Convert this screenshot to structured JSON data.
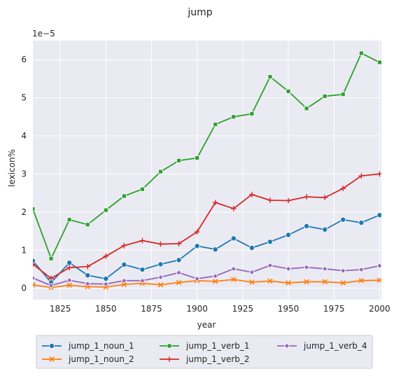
{
  "chart_data": {
    "type": "line",
    "title": "jump",
    "xlabel": "year",
    "ylabel": "lexicon%",
    "y_scale_label": "1e−5",
    "xlim": [
      1810,
      2001
    ],
    "ylim": [
      -0.3,
      6.5
    ],
    "x_ticks": [
      1825,
      1850,
      1875,
      1900,
      1925,
      1950,
      1975,
      2000
    ],
    "y_ticks": [
      0,
      1,
      2,
      3,
      4,
      5,
      6
    ],
    "grid": true,
    "legend_position": "bottom-center",
    "x": [
      1810,
      1820,
      1830,
      1840,
      1850,
      1860,
      1870,
      1880,
      1890,
      1900,
      1910,
      1920,
      1930,
      1940,
      1950,
      1960,
      1970,
      1980,
      1990,
      2000
    ],
    "series": [
      {
        "name": "jump_1_noun_1",
        "color": "#1f77b4",
        "marker": "circle",
        "values": [
          0.72,
          0.15,
          0.67,
          0.34,
          0.25,
          0.62,
          0.49,
          0.63,
          0.74,
          1.11,
          1.02,
          1.31,
          1.06,
          1.22,
          1.4,
          1.63,
          1.54,
          1.8,
          1.72,
          1.92
        ]
      },
      {
        "name": "jump_1_noun_2",
        "color": "#ff7f0e",
        "marker": "x",
        "values": [
          0.09,
          0.02,
          0.08,
          0.04,
          0.03,
          0.1,
          0.13,
          0.09,
          0.15,
          0.2,
          0.18,
          0.23,
          0.16,
          0.19,
          0.14,
          0.17,
          0.17,
          0.14,
          0.2,
          0.21
        ]
      },
      {
        "name": "jump_1_verb_1",
        "color": "#2ca02c",
        "marker": "square",
        "values": [
          2.08,
          0.78,
          1.8,
          1.67,
          2.05,
          2.42,
          2.6,
          3.06,
          3.35,
          3.42,
          4.3,
          4.5,
          4.58,
          5.55,
          5.17,
          4.72,
          5.04,
          5.09,
          6.17,
          5.93
        ]
      },
      {
        "name": "jump_1_verb_2",
        "color": "#d62728",
        "marker": "plus",
        "values": [
          0.63,
          0.26,
          0.54,
          0.57,
          0.84,
          1.12,
          1.25,
          1.16,
          1.17,
          1.48,
          2.25,
          2.09,
          2.46,
          2.31,
          2.3,
          2.4,
          2.38,
          2.62,
          2.95,
          3.0
        ]
      },
      {
        "name": "jump_1_verb_4",
        "color": "#9467bd",
        "marker": "diamond",
        "values": [
          0.27,
          0.07,
          0.21,
          0.12,
          0.11,
          0.2,
          0.2,
          0.29,
          0.41,
          0.25,
          0.32,
          0.51,
          0.42,
          0.6,
          0.51,
          0.55,
          0.51,
          0.46,
          0.49,
          0.59
        ]
      }
    ],
    "legend_order": [
      "jump_1_noun_1",
      "jump_1_noun_2",
      "jump_1_verb_1",
      "jump_1_verb_2",
      "jump_1_verb_4"
    ]
  }
}
